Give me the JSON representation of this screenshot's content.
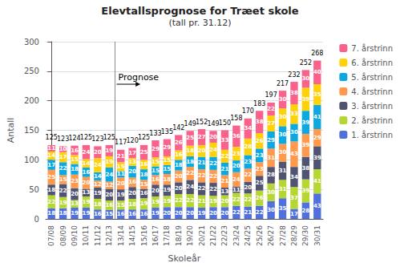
{
  "chart_data": {
    "type": "bar",
    "stacked": true,
    "title": "Elevtallsprognose for Træet skole",
    "subtitle": "(tall pr. 31.12)",
    "xlabel": "Skoleår",
    "ylabel": "Antall",
    "categories": [
      "07/08",
      "08/09",
      "09/10",
      "10/11",
      "11/12",
      "12/13",
      "13/14",
      "14/15",
      "15/16",
      "16/17",
      "17/18",
      "18/19",
      "19/20",
      "20/21",
      "21/22",
      "22/23",
      "23/24",
      "24/25",
      "25/26",
      "26/27",
      "27/28",
      "28/29",
      "29/30",
      "30/31"
    ],
    "series": [
      {
        "name": "1. årstrinn",
        "values": [
          18,
          18,
          19,
          19,
          16,
          15,
          16,
          16,
          16,
          19,
          20,
          20,
          20,
          19,
          20,
          20,
          22,
          21,
          22,
          30,
          35,
          17,
          28,
          43
        ]
      },
      {
        "name": "2. årstrinn",
        "values": [
          22,
          19,
          13,
          19,
          18,
          16,
          15,
          18,
          19,
          19,
          19,
          22,
          22,
          21,
          19,
          20,
          22,
          22,
          26,
          30,
          31,
          37,
          39,
          41
        ]
      },
      {
        "name": "3. årstrinn",
        "values": [
          18,
          22,
          20,
          13,
          19,
          20,
          19,
          20,
          16,
          20,
          19,
          20,
          24,
          22,
          22,
          13,
          11,
          20,
          25,
          28,
          31,
          34,
          38,
          39
        ]
      },
      {
        "name": "4. årstrinn",
        "values": [
          25,
          15,
          23,
          20,
          12,
          12,
          20,
          16,
          15,
          16,
          18,
          20,
          22,
          22,
          22,
          21,
          24,
          22,
          23,
          31,
          30,
          43,
          39,
          29
        ]
      },
      {
        "name": "5. årstrinn",
        "values": [
          17,
          22,
          18,
          16,
          14,
          24,
          11,
          20,
          18,
          15,
          15,
          18,
          18,
          21,
          22,
          21,
          20,
          23,
          23,
          29,
          30,
          30,
          39,
          41
        ]
      },
      {
        "name": "6. årstrinn",
        "values": [
          14,
          17,
          15,
          14,
          24,
          19,
          15,
          13,
          16,
          15,
          15,
          16,
          18,
          20,
          24,
          22,
          23,
          28,
          26,
          27,
          30,
          33,
          39,
          35
        ]
      },
      {
        "name": "7. årstrinn",
        "values": [
          11,
          10,
          16,
          24,
          20,
          19,
          21,
          17,
          25,
          29,
          29,
          26,
          25,
          27,
          20,
          33,
          36,
          34,
          38,
          22,
          30,
          38,
          30,
          40
        ]
      }
    ],
    "totals": [
      125,
      123,
      124,
      125,
      123,
      125,
      117,
      120,
      125,
      133,
      135,
      142,
      149,
      152,
      149,
      150,
      158,
      170,
      183,
      197,
      217,
      232,
      252,
      268
    ],
    "ylim": [
      0,
      300
    ],
    "yticks": [
      0,
      50,
      100,
      150,
      200,
      250,
      300
    ],
    "grid": true,
    "legend": "right",
    "data_labels": true,
    "annotations": [
      {
        "text": "Prognose",
        "x": 5.5
      }
    ]
  }
}
